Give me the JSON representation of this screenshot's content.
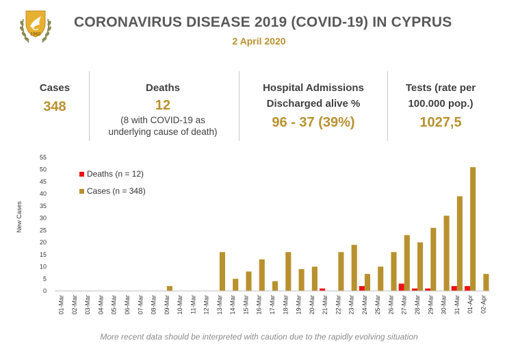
{
  "header": {
    "title": "CORONAVIRUS DISEASE 2019 (COVID-19) IN CYPRUS",
    "date": "2 April 2020",
    "logo_icon": "cyprus-coat-of-arms-icon"
  },
  "stats": {
    "cases": {
      "label": "Cases",
      "value": "348"
    },
    "deaths": {
      "label": "Deaths",
      "value": "12",
      "note_line1": "(8 with COVID-19 as",
      "note_line2": "underlying cause of death)"
    },
    "hospital": {
      "label_line1": "Hospital Admissions",
      "label_line2": "Discharged alive %",
      "value": "96 - 37 (39%)"
    },
    "tests": {
      "label_line1": "Tests (rate per",
      "label_line2": "100.000 pop.)",
      "value": "1027,5"
    }
  },
  "colors": {
    "accent": "#b8912f",
    "cases_bar": "#b8912f",
    "deaths_bar": "#ee1111",
    "title": "#595959"
  },
  "chart_data": {
    "type": "bar",
    "ylabel": "New Cases",
    "ylim": [
      0,
      55
    ],
    "yticks": [
      0,
      5,
      10,
      15,
      20,
      25,
      30,
      35,
      40,
      45,
      50,
      55
    ],
    "grid": false,
    "legend_position": "top-left",
    "categories": [
      "01-Mar",
      "02-Mar",
      "03-Mar",
      "04-Mar",
      "05-Mar",
      "06-Mar",
      "07-Mar",
      "08-Mar",
      "09-Mar",
      "10-Mar",
      "11-Mar",
      "12-Mar",
      "13-Mar",
      "14-Mar",
      "15-Mar",
      "16-Mar",
      "17-Mar",
      "18-Mar",
      "19-Mar",
      "20-Mar",
      "21-Mar",
      "22-Mar",
      "23-Mar",
      "24-Mar",
      "25-Mar",
      "26-Mar",
      "27-Mar",
      "28-Mar",
      "29-Mar",
      "30-Mar",
      "31-Mar",
      "01-Apr",
      "02-Apr"
    ],
    "series": [
      {
        "name": "Deaths (n = 12)",
        "color": "#ee1111",
        "values": [
          0,
          0,
          0,
          0,
          0,
          0,
          0,
          0,
          0,
          0,
          0,
          0,
          0,
          0,
          0,
          0,
          0,
          0,
          0,
          0,
          1,
          0,
          0,
          2,
          0,
          0,
          3,
          1,
          1,
          0,
          2,
          2,
          0
        ]
      },
      {
        "name": "Cases (n = 348)",
        "color": "#b8912f",
        "values": [
          0,
          0,
          0,
          0,
          0,
          0,
          0,
          0,
          2,
          0,
          0,
          0,
          16,
          5,
          8,
          13,
          4,
          16,
          9,
          10,
          0,
          16,
          19,
          7,
          10,
          16,
          23,
          20,
          26,
          31,
          39,
          51,
          7
        ]
      }
    ]
  },
  "footer": {
    "note": "More recent data should be interpreted with caution due to the rapidly evolving situation"
  }
}
